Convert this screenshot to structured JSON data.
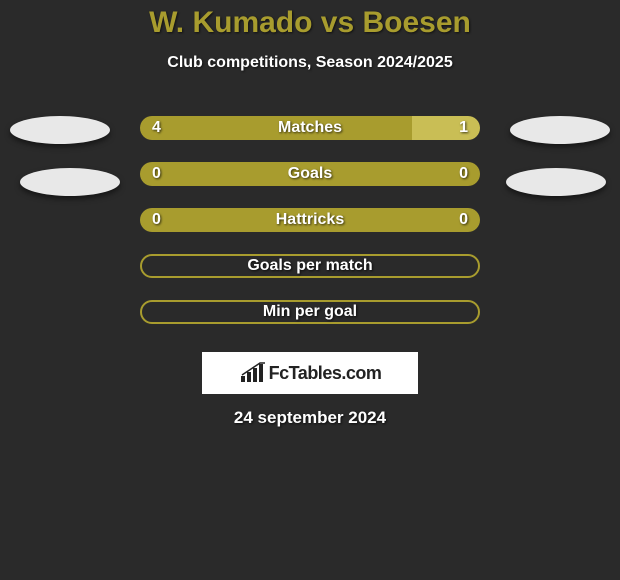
{
  "title": "W. Kumado vs Boesen",
  "subtitle": "Club competitions, Season 2024/2025",
  "date": "24 september 2024",
  "brand": "FcTables.com",
  "colors": {
    "bar_primary": "#a89c2e",
    "bar_secondary": "#c9be55",
    "bar_empty_border": "#a89c2e",
    "background": "#2a2a2a",
    "title_color": "#a89c2e",
    "text_color": "#ffffff",
    "ellipse_fill": "#e8e8e8"
  },
  "stats": [
    {
      "label": "Matches",
      "left_val": "4",
      "right_val": "1",
      "left_pct": 80,
      "right_pct": 20,
      "left_color": "#a89c2e",
      "right_color": "#c9be55"
    },
    {
      "label": "Goals",
      "left_val": "0",
      "right_val": "0",
      "left_pct": 50,
      "right_pct": 50,
      "left_color": "#a89c2e",
      "right_color": "#a89c2e"
    },
    {
      "label": "Hattricks",
      "left_val": "0",
      "right_val": "0",
      "left_pct": 50,
      "right_pct": 50,
      "left_color": "#a89c2e",
      "right_color": "#a89c2e"
    },
    {
      "label": "Goals per match",
      "left_val": "",
      "right_val": "",
      "left_pct": 0,
      "right_pct": 0,
      "left_color": "#a89c2e",
      "right_color": "#a89c2e"
    },
    {
      "label": "Min per goal",
      "left_val": "",
      "right_val": "",
      "left_pct": 0,
      "right_pct": 0,
      "left_color": "#a89c2e",
      "right_color": "#a89c2e"
    }
  ]
}
